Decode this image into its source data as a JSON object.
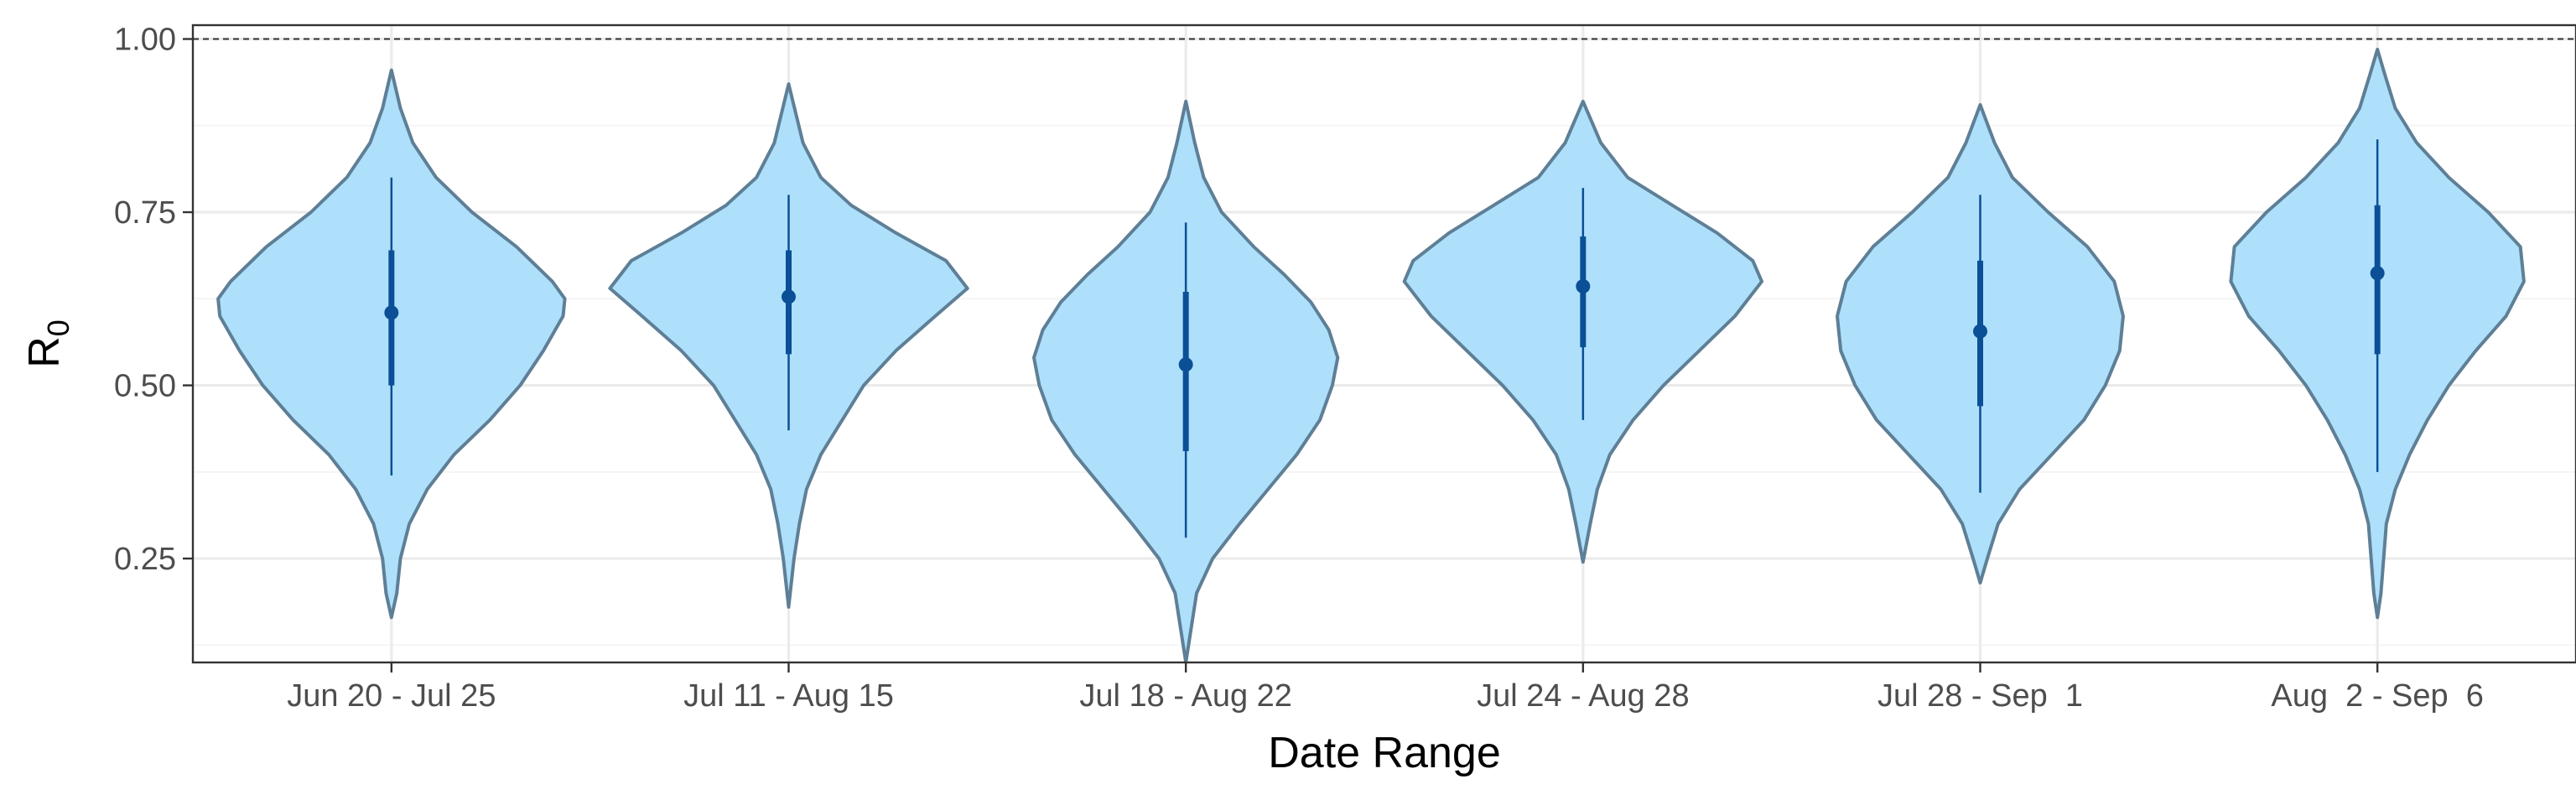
{
  "chart_data": {
    "type": "violin",
    "xlabel": "Date Range",
    "ylabel": {
      "main": "R",
      "sub": "0"
    },
    "ylim": [
      0.1,
      1.02
    ],
    "yticks": [
      0.25,
      0.5,
      0.75,
      1.0
    ],
    "ytick_labels": [
      "0.25",
      "0.50",
      "0.75",
      "1.00"
    ],
    "reference_line": {
      "y": 1.0,
      "style": "dashed"
    },
    "grid": true,
    "colors": {
      "fill": "#aee0fc",
      "outline": "#5e7f96",
      "interval": "#0b4f96",
      "reference": "#333333"
    },
    "categories": [
      "Jun 20 - Jul 25",
      "Jul 11 - Aug 15",
      "Jul 18 - Aug 22",
      "Jul 24 - Aug 28",
      "Jul 28 - Sep  1",
      "Aug  2 - Sep  6"
    ],
    "series": [
      {
        "category": "Jun 20 - Jul 25",
        "min": 0.165,
        "max": 0.955,
        "median": 0.605,
        "inner_low": 0.5,
        "inner_high": 0.695,
        "outer_low": 0.37,
        "outer_high": 0.8,
        "density": [
          [
            0.165,
            0.0
          ],
          [
            0.2,
            0.03
          ],
          [
            0.25,
            0.05
          ],
          [
            0.3,
            0.1
          ],
          [
            0.35,
            0.2
          ],
          [
            0.4,
            0.35
          ],
          [
            0.45,
            0.55
          ],
          [
            0.5,
            0.72
          ],
          [
            0.55,
            0.85
          ],
          [
            0.6,
            0.96
          ],
          [
            0.625,
            0.97
          ],
          [
            0.65,
            0.9
          ],
          [
            0.7,
            0.7
          ],
          [
            0.75,
            0.45
          ],
          [
            0.8,
            0.25
          ],
          [
            0.85,
            0.12
          ],
          [
            0.9,
            0.05
          ],
          [
            0.955,
            0.0
          ]
        ]
      },
      {
        "category": "Jul 11 - Aug 15",
        "min": 0.18,
        "max": 0.935,
        "median": 0.628,
        "inner_low": 0.545,
        "inner_high": 0.695,
        "outer_low": 0.435,
        "outer_high": 0.775,
        "density": [
          [
            0.18,
            0.0
          ],
          [
            0.25,
            0.03
          ],
          [
            0.3,
            0.06
          ],
          [
            0.35,
            0.1
          ],
          [
            0.4,
            0.18
          ],
          [
            0.45,
            0.3
          ],
          [
            0.5,
            0.42
          ],
          [
            0.55,
            0.6
          ],
          [
            0.6,
            0.82
          ],
          [
            0.64,
            1.0
          ],
          [
            0.68,
            0.88
          ],
          [
            0.72,
            0.6
          ],
          [
            0.76,
            0.35
          ],
          [
            0.8,
            0.18
          ],
          [
            0.85,
            0.08
          ],
          [
            0.935,
            0.0
          ]
        ]
      },
      {
        "category": "Jul 18 - Aug 22",
        "min": 0.1,
        "max": 0.91,
        "median": 0.53,
        "inner_low": 0.405,
        "inner_high": 0.635,
        "outer_low": 0.28,
        "outer_high": 0.735,
        "density": [
          [
            0.1,
            0.0
          ],
          [
            0.15,
            0.03
          ],
          [
            0.2,
            0.06
          ],
          [
            0.25,
            0.15
          ],
          [
            0.3,
            0.3
          ],
          [
            0.35,
            0.46
          ],
          [
            0.4,
            0.62
          ],
          [
            0.45,
            0.75
          ],
          [
            0.5,
            0.82
          ],
          [
            0.54,
            0.85
          ],
          [
            0.58,
            0.8
          ],
          [
            0.62,
            0.7
          ],
          [
            0.66,
            0.55
          ],
          [
            0.7,
            0.38
          ],
          [
            0.75,
            0.2
          ],
          [
            0.8,
            0.1
          ],
          [
            0.85,
            0.05
          ],
          [
            0.91,
            0.0
          ]
        ]
      },
      {
        "category": "Jul 24 - Aug 28",
        "min": 0.245,
        "max": 0.91,
        "median": 0.643,
        "inner_low": 0.555,
        "inner_high": 0.715,
        "outer_low": 0.45,
        "outer_high": 0.785,
        "density": [
          [
            0.245,
            0.0
          ],
          [
            0.3,
            0.04
          ],
          [
            0.35,
            0.08
          ],
          [
            0.4,
            0.15
          ],
          [
            0.45,
            0.28
          ],
          [
            0.5,
            0.45
          ],
          [
            0.55,
            0.65
          ],
          [
            0.6,
            0.85
          ],
          [
            0.65,
            1.0
          ],
          [
            0.68,
            0.95
          ],
          [
            0.72,
            0.75
          ],
          [
            0.76,
            0.5
          ],
          [
            0.8,
            0.25
          ],
          [
            0.85,
            0.1
          ],
          [
            0.91,
            0.0
          ]
        ]
      },
      {
        "category": "Jul 28 - Sep  1",
        "min": 0.215,
        "max": 0.905,
        "median": 0.578,
        "inner_low": 0.47,
        "inner_high": 0.68,
        "outer_low": 0.345,
        "outer_high": 0.775,
        "density": [
          [
            0.215,
            0.0
          ],
          [
            0.25,
            0.04
          ],
          [
            0.3,
            0.1
          ],
          [
            0.35,
            0.22
          ],
          [
            0.4,
            0.4
          ],
          [
            0.45,
            0.58
          ],
          [
            0.5,
            0.7
          ],
          [
            0.55,
            0.78
          ],
          [
            0.6,
            0.8
          ],
          [
            0.65,
            0.75
          ],
          [
            0.7,
            0.6
          ],
          [
            0.75,
            0.38
          ],
          [
            0.8,
            0.18
          ],
          [
            0.85,
            0.08
          ],
          [
            0.905,
            0.0
          ]
        ]
      },
      {
        "category": "Aug  2 - Sep  6",
        "min": 0.165,
        "max": 0.985,
        "median": 0.662,
        "inner_low": 0.545,
        "inner_high": 0.76,
        "outer_low": 0.375,
        "outer_high": 0.855,
        "density": [
          [
            0.165,
            0.0
          ],
          [
            0.2,
            0.02
          ],
          [
            0.3,
            0.05
          ],
          [
            0.35,
            0.1
          ],
          [
            0.4,
            0.18
          ],
          [
            0.45,
            0.28
          ],
          [
            0.5,
            0.4
          ],
          [
            0.55,
            0.55
          ],
          [
            0.6,
            0.72
          ],
          [
            0.65,
            0.82
          ],
          [
            0.7,
            0.8
          ],
          [
            0.75,
            0.62
          ],
          [
            0.8,
            0.4
          ],
          [
            0.85,
            0.22
          ],
          [
            0.9,
            0.1
          ],
          [
            0.95,
            0.04
          ],
          [
            0.985,
            0.0
          ]
        ]
      }
    ]
  }
}
